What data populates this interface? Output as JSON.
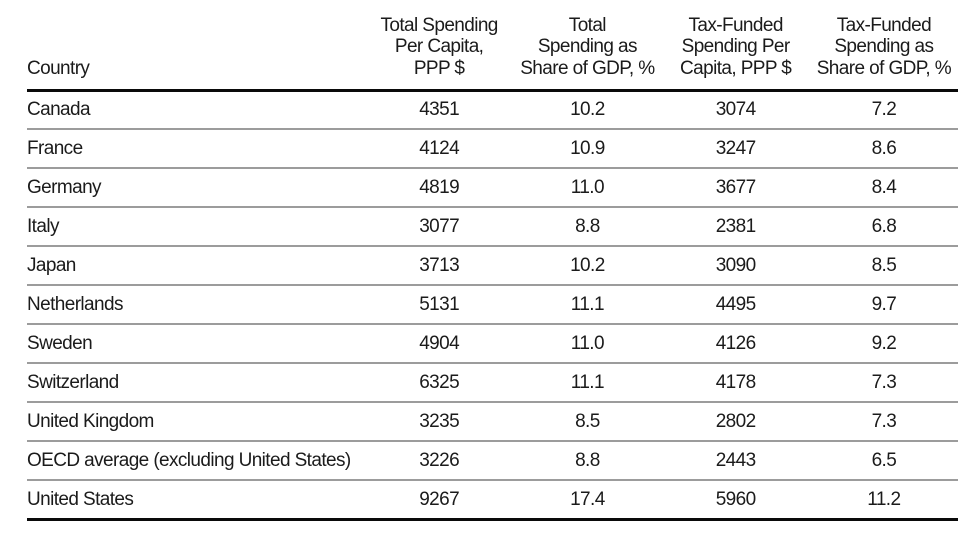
{
  "colors": {
    "background": "#ffffff",
    "text": "#1b1b1b",
    "header_rule": "#0a0a0a",
    "row_rule": "#9c9c9c",
    "bottom_rule": "#0a0a0a"
  },
  "table": {
    "header": {
      "country_label": "Country",
      "columns": [
        {
          "name": "column-header-total-spending-per-capita",
          "lines": [
            "Total Spending",
            "Per Capita,",
            "PPP $"
          ]
        },
        {
          "name": "column-header-total-spending-share-gdp",
          "lines": [
            "Total",
            "Spending as",
            "Share of GDP, %"
          ]
        },
        {
          "name": "column-header-tax-funded-per-capita",
          "lines": [
            "Tax-Funded",
            "Spending Per",
            "Capita, PPP $"
          ]
        },
        {
          "name": "column-header-tax-funded-share-gdp",
          "lines": [
            "Tax-Funded",
            "Spending as",
            "Share of GDP, %"
          ]
        }
      ]
    },
    "rows": [
      {
        "country": "Canada",
        "values": [
          "4351",
          "10.2",
          "3074",
          "7.2"
        ]
      },
      {
        "country": "France",
        "values": [
          "4124",
          "10.9",
          "3247",
          "8.6"
        ]
      },
      {
        "country": "Germany",
        "values": [
          "4819",
          "11.0",
          "3677",
          "8.4"
        ]
      },
      {
        "country": "Italy",
        "values": [
          "3077",
          "8.8",
          "2381",
          "6.8"
        ]
      },
      {
        "country": "Japan",
        "values": [
          "3713",
          "10.2",
          "3090",
          "8.5"
        ]
      },
      {
        "country": "Netherlands",
        "values": [
          "5131",
          "11.1",
          "4495",
          "9.7"
        ]
      },
      {
        "country": "Sweden",
        "values": [
          "4904",
          "11.0",
          "4126",
          "9.2"
        ]
      },
      {
        "country": "Switzerland",
        "values": [
          "6325",
          "11.1",
          "4178",
          "7.3"
        ]
      },
      {
        "country": "United Kingdom",
        "values": [
          "3235",
          "8.5",
          "2802",
          "7.3"
        ]
      },
      {
        "country": "OECD average (excluding United States)",
        "values": [
          "3226",
          "8.8",
          "2443",
          "6.5"
        ]
      },
      {
        "country": "United States",
        "values": [
          "9267",
          "17.4",
          "5960",
          "11.2"
        ]
      }
    ]
  },
  "chart_data": {
    "type": "table",
    "columns": [
      "Country",
      "Total Spending Per Capita, PPP $",
      "Total Spending as Share of GDP, %",
      "Tax-Funded Spending Per Capita, PPP $",
      "Tax-Funded Spending as Share of GDP, %"
    ],
    "rows": [
      [
        "Canada",
        4351,
        10.2,
        3074,
        7.2
      ],
      [
        "France",
        4124,
        10.9,
        3247,
        8.6
      ],
      [
        "Germany",
        4819,
        11.0,
        3677,
        8.4
      ],
      [
        "Italy",
        3077,
        8.8,
        2381,
        6.8
      ],
      [
        "Japan",
        3713,
        10.2,
        3090,
        8.5
      ],
      [
        "Netherlands",
        5131,
        11.1,
        4495,
        9.7
      ],
      [
        "Sweden",
        4904,
        11.0,
        4126,
        9.2
      ],
      [
        "Switzerland",
        6325,
        11.1,
        4178,
        7.3
      ],
      [
        "United Kingdom",
        3235,
        8.5,
        2802,
        7.3
      ],
      [
        "OECD average (excluding United States)",
        3226,
        8.8,
        2443,
        6.5
      ],
      [
        "United States",
        9267,
        17.4,
        5960,
        11.2
      ]
    ]
  }
}
